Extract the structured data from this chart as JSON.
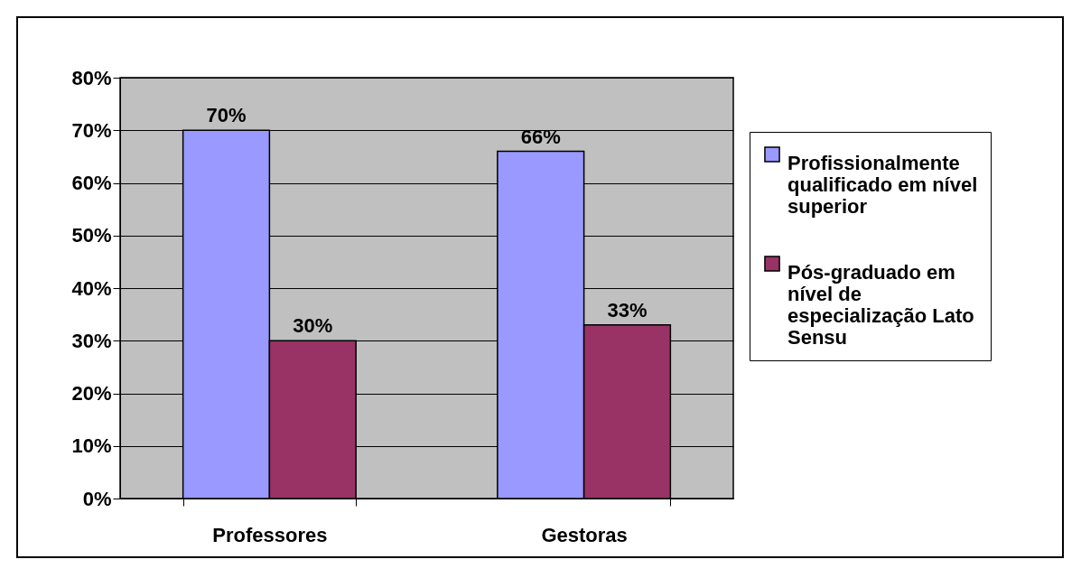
{
  "chart_data": {
    "type": "bar",
    "categories": [
      "Professores",
      "Gestoras"
    ],
    "series": [
      {
        "name": "Profissionalmente qualificado em nível superior",
        "color": "#9999ff",
        "values": [
          70,
          66
        ],
        "value_labels": [
          "70%",
          "66%"
        ]
      },
      {
        "name": "Pós-graduado em nível de especialização Lato Sensu",
        "color": "#993366",
        "values": [
          30,
          33
        ],
        "value_labels": [
          "30%",
          "33%"
        ]
      }
    ],
    "ylim": [
      0,
      80
    ],
    "yticks": [
      {
        "value": 0,
        "label": "0%"
      },
      {
        "value": 10,
        "label": "10%"
      },
      {
        "value": 20,
        "label": "20%"
      },
      {
        "value": 30,
        "label": "30%"
      },
      {
        "value": 40,
        "label": "40%"
      },
      {
        "value": 50,
        "label": "50%"
      },
      {
        "value": 60,
        "label": "60%"
      },
      {
        "value": 70,
        "label": "70%"
      },
      {
        "value": 80,
        "label": "80%"
      }
    ],
    "grid": "y",
    "legend": "right"
  }
}
